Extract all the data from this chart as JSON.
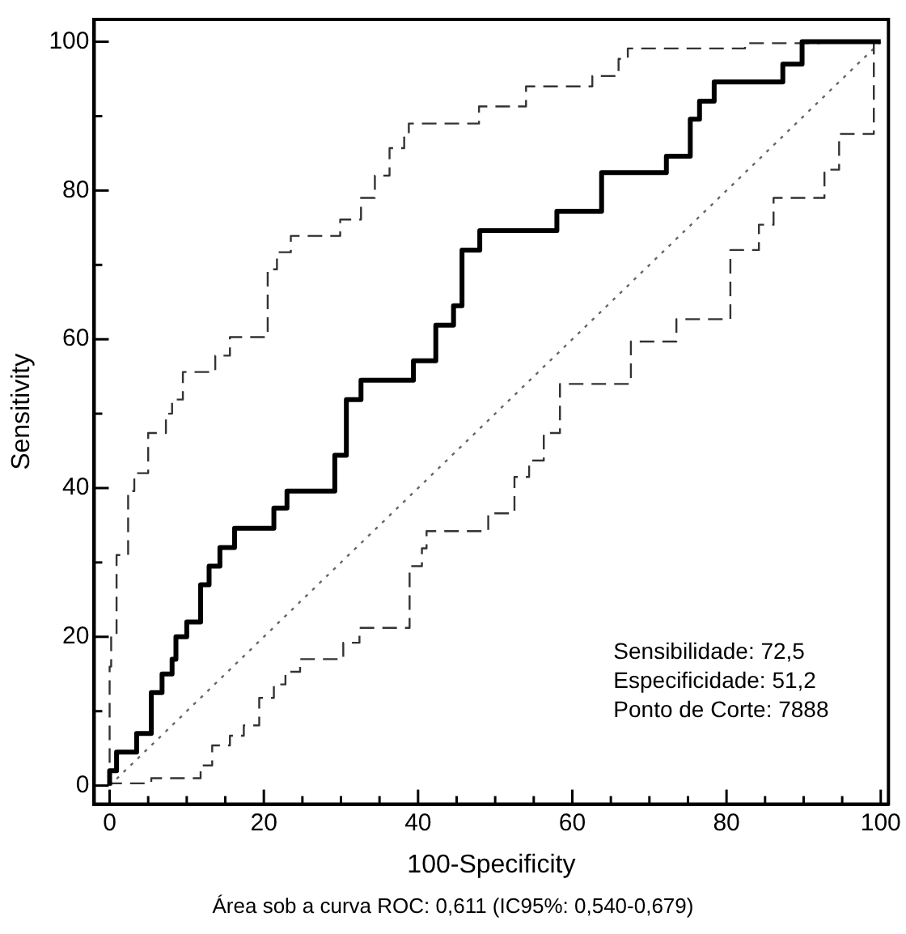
{
  "chart_data": {
    "type": "step",
    "xlabel": "100-Specificity",
    "ylabel": "Sensitivity",
    "xlim": [
      -2,
      101
    ],
    "ylim": [
      -2.5,
      103
    ],
    "xticks": [
      0,
      {
        "value": 5,
        "label": null
      },
      {
        "value": 10,
        "label": null
      },
      {
        "value": 15,
        "label": null
      },
      20,
      {
        "value": 25,
        "label": null
      },
      {
        "value": 30,
        "label": null
      },
      {
        "value": 35,
        "label": null
      },
      40,
      {
        "value": 45,
        "label": null
      },
      {
        "value": 50,
        "label": null
      },
      {
        "value": 55,
        "label": null
      },
      60,
      {
        "value": 65,
        "label": null
      },
      {
        "value": 70,
        "label": null
      },
      {
        "value": 75,
        "label": null
      },
      80,
      {
        "value": 85,
        "label": null
      },
      {
        "value": 90,
        "label": null
      },
      {
        "value": 95,
        "label": null
      },
      100
    ],
    "yticks": [
      0,
      {
        "value": 10,
        "label": null
      },
      20,
      {
        "value": 30,
        "label": null
      },
      40,
      {
        "value": 50,
        "label": null
      },
      60,
      {
        "value": 70,
        "label": null
      },
      80,
      {
        "value": 90,
        "label": null
      },
      100
    ],
    "grid": false,
    "legend": false,
    "marker": "none",
    "series": [
      {
        "type": "step",
        "color": "#000000",
        "line_style": "solid",
        "x": [
          0,
          0.9,
          3.5,
          5.4,
          6.8,
          8.1,
          8.6,
          10,
          11.8,
          12.9,
          14.3,
          16.2,
          21.3,
          23,
          29.2,
          30.7,
          30.7,
          32.6,
          39.4,
          42.3,
          44.6,
          45.7,
          48,
          58,
          63.8,
          63.8,
          72.2,
          75.3,
          76.5,
          78.4,
          87.3,
          89.8,
          97,
          100
        ],
        "values": [
          0,
          2,
          4.5,
          7,
          12.5,
          15,
          17,
          20,
          22,
          27,
          29.5,
          32,
          34.6,
          37.3,
          39.6,
          44.4,
          49.6,
          51.9,
          54.5,
          57.1,
          61.9,
          64.5,
          72,
          74.6,
          77.2,
          79.5,
          82.4,
          84.6,
          89.6,
          92,
          94.6,
          97,
          100,
          100
        ]
      },
      {
        "type": "step",
        "color": "#333333",
        "line_style": "dashed",
        "x": [
          0,
          0.2,
          0.9,
          2.4,
          3.2,
          5,
          7.3,
          8.1,
          9.5,
          13.7,
          15.6,
          20.5,
          21.7,
          23.5,
          29.9,
          32.6,
          34.4,
          36.3,
          38.2,
          38.8,
          47.9,
          54,
          62.6,
          66,
          67.2,
          82.4,
          92,
          100
        ],
        "values": [
          0,
          16,
          20.3,
          31,
          39.6,
          42,
          47.4,
          50,
          51.9,
          55.6,
          57.8,
          60.3,
          69.4,
          71.7,
          73.9,
          76.1,
          79,
          82,
          85.7,
          87.6,
          89,
          91.3,
          94,
          95.4,
          97.7,
          99.1,
          99.8,
          100
        ]
      },
      {
        "type": "step",
        "color": "#333333",
        "line_style": "dashed",
        "x": [
          0,
          5.4,
          11.8,
          13.3,
          15.6,
          17.4,
          19.4,
          21.3,
          22.8,
          24.7,
          30.3,
          32.4,
          38.9,
          40.5,
          41.1,
          49.1,
          52.5,
          54.4,
          56.3,
          58.4,
          58.4,
          67.6,
          73.5,
          80.5,
          84.2,
          86.1,
          92.7,
          94.6,
          99.1,
          99.8
        ],
        "values": [
          0,
          0.3,
          1,
          2.7,
          5.4,
          6.7,
          8.1,
          11.8,
          13.6,
          15.3,
          17,
          19.2,
          21.2,
          29.5,
          31.9,
          34.2,
          36.6,
          41.5,
          43.7,
          47.4,
          51.3,
          54,
          59.7,
          62.7,
          72,
          75.4,
          79,
          82.8,
          87.6,
          100
        ]
      },
      {
        "type": "line",
        "color": "#666666",
        "line_style": "dotted",
        "x": [
          0,
          100
        ],
        "values": [
          0,
          100
        ]
      }
    ],
    "annotations": [
      "Sensibilidade: 72,5\nEspecificidade: 51,2\nPonto de Corte: 7888",
      "Área sob a curva ROC: 0,611 (IC95%: 0,540-0,679)"
    ]
  }
}
